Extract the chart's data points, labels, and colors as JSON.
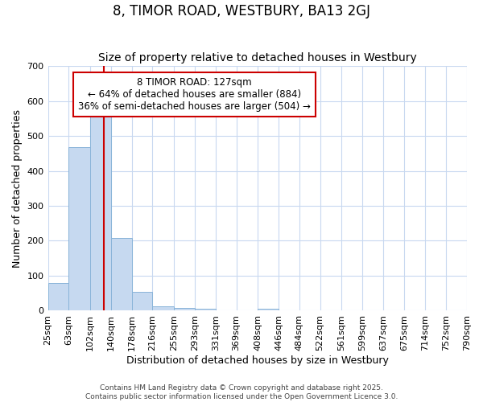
{
  "title": "8, TIMOR ROAD, WESTBURY, BA13 2GJ",
  "subtitle": "Size of property relative to detached houses in Westbury",
  "xlabel": "Distribution of detached houses by size in Westbury",
  "ylabel": "Number of detached properties",
  "bin_labels": [
    "25sqm",
    "63sqm",
    "102sqm",
    "140sqm",
    "178sqm",
    "216sqm",
    "255sqm",
    "293sqm",
    "331sqm",
    "369sqm",
    "408sqm",
    "446sqm",
    "484sqm",
    "522sqm",
    "561sqm",
    "599sqm",
    "637sqm",
    "675sqm",
    "714sqm",
    "752sqm",
    "790sqm"
  ],
  "bin_edges": [
    25,
    63,
    102,
    140,
    178,
    216,
    255,
    293,
    331,
    369,
    408,
    446,
    484,
    522,
    561,
    599,
    637,
    675,
    714,
    752,
    790
  ],
  "bar_heights": [
    80,
    467,
    560,
    207,
    55,
    13,
    7,
    5,
    0,
    0,
    5,
    0,
    0,
    0,
    0,
    0,
    0,
    0,
    0,
    0
  ],
  "bar_color": "#c6d9f0",
  "bar_edgecolor": "#8ab4d9",
  "background_color": "#ffffff",
  "grid_color": "#c8d8f0",
  "redline_x": 127,
  "redline_color": "#cc0000",
  "annotation_text": "8 TIMOR ROAD: 127sqm\n← 64% of detached houses are smaller (884)\n36% of semi-detached houses are larger (504) →",
  "annotation_box_color": "#cc0000",
  "ylim": [
    0,
    700
  ],
  "yticks": [
    0,
    100,
    200,
    300,
    400,
    500,
    600,
    700
  ],
  "title_fontsize": 12,
  "subtitle_fontsize": 10,
  "xlabel_fontsize": 9,
  "ylabel_fontsize": 9,
  "tick_fontsize": 8,
  "annotation_fontsize": 8.5,
  "footer_line1": "Contains HM Land Registry data © Crown copyright and database right 2025.",
  "footer_line2": "Contains public sector information licensed under the Open Government Licence 3.0.",
  "footer_fontsize": 6.5
}
